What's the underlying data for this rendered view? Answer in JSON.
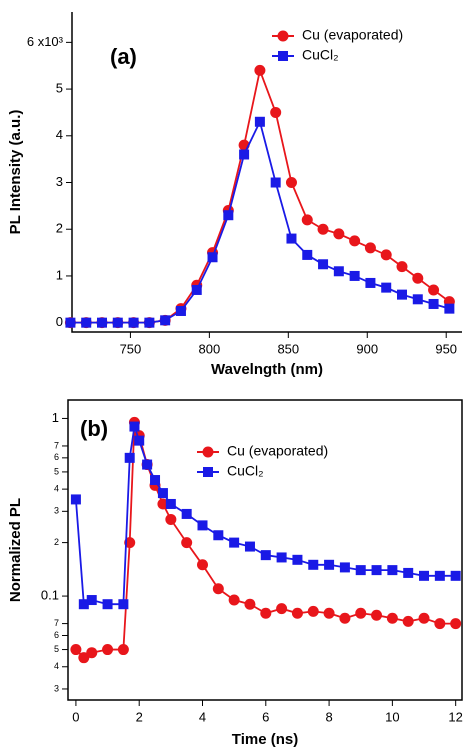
{
  "chart_data": [
    {
      "type": "line",
      "annotation": "(a)",
      "x_label": "Wavelngth (nm)",
      "y_label": "PL Intensity (a.u.)",
      "x": [
        712,
        722,
        732,
        742,
        752,
        762,
        772,
        782,
        792,
        802,
        812,
        822,
        832,
        842,
        852,
        862,
        872,
        882,
        892,
        902,
        912,
        922,
        932,
        942,
        952
      ],
      "series": [
        {
          "name": "Cu (evaporated)",
          "color": "#e8161b",
          "marker": "circle",
          "values": [
            0,
            0,
            0,
            0,
            0,
            0,
            0.05,
            0.3,
            0.8,
            1.5,
            2.4,
            3.8,
            5.4,
            4.5,
            3.0,
            2.2,
            2.0,
            1.9,
            1.75,
            1.6,
            1.45,
            1.2,
            0.95,
            0.7,
            0.45
          ]
        },
        {
          "name": "CuCl₂",
          "color": "#1a1ae6",
          "marker": "square",
          "values": [
            0,
            0,
            0,
            0,
            0,
            0,
            0.05,
            0.25,
            0.7,
            1.4,
            2.3,
            3.6,
            4.3,
            3.0,
            1.8,
            1.45,
            1.25,
            1.1,
            1.0,
            0.85,
            0.75,
            0.6,
            0.5,
            0.4,
            0.3
          ]
        }
      ],
      "xlim": [
        713,
        960
      ],
      "xticks": [
        750,
        800,
        850,
        900,
        950
      ],
      "ylim": [
        -0.2,
        6.65
      ],
      "yticks": [
        0,
        1,
        2,
        3,
        4,
        5,
        {
          "value": 6,
          "label": "6 x10³"
        }
      ]
    },
    {
      "type": "line",
      "annotation": "(b)",
      "x_label": "Time (ns)",
      "y_label": "Normalized PL",
      "log_y": true,
      "x": [
        0,
        0.25,
        0.5,
        1,
        1.5,
        1.7,
        1.85,
        2,
        2.25,
        2.5,
        2.75,
        3,
        3.5,
        4,
        4.5,
        5,
        5.5,
        6,
        6.5,
        7,
        7.5,
        8,
        8.5,
        9,
        9.5,
        10,
        10.5,
        11,
        11.5,
        12
      ],
      "series": [
        {
          "name": "Cu (evaporated)",
          "color": "#e8161b",
          "marker": "circle",
          "values": [
            0.05,
            0.045,
            0.048,
            0.05,
            0.05,
            0.2,
            0.95,
            0.8,
            0.55,
            0.42,
            0.33,
            0.27,
            0.2,
            0.15,
            0.11,
            0.095,
            0.09,
            0.08,
            0.085,
            0.08,
            0.082,
            0.08,
            0.075,
            0.08,
            0.078,
            0.075,
            0.072,
            0.075,
            0.07,
            0.07
          ]
        },
        {
          "name": "CuCl₂",
          "color": "#1a1ae6",
          "marker": "square",
          "values": [
            0.35,
            0.09,
            0.095,
            0.09,
            0.09,
            0.6,
            0.9,
            0.75,
            0.55,
            0.45,
            0.38,
            0.33,
            0.29,
            0.25,
            0.22,
            0.2,
            0.19,
            0.17,
            0.165,
            0.16,
            0.15,
            0.15,
            0.145,
            0.14,
            0.14,
            0.14,
            0.135,
            0.13,
            0.13,
            0.13
          ]
        }
      ],
      "xlim": [
        -0.25,
        12.2
      ],
      "xticks": [
        0,
        2,
        4,
        6,
        8,
        10,
        12
      ],
      "ylim": [
        0.026,
        1.27
      ],
      "yticks": [
        1,
        {
          "value": 0.7,
          "label": "7"
        },
        {
          "value": 0.6,
          "label": "6"
        },
        {
          "value": 0.5,
          "label": "5"
        },
        {
          "value": 0.4,
          "label": "4"
        },
        {
          "value": 0.3,
          "label": "3"
        },
        {
          "value": 0.2,
          "label": "2"
        },
        0.1,
        {
          "value": 0.07,
          "label": "7"
        },
        {
          "value": 0.06,
          "label": "6"
        },
        {
          "value": 0.05,
          "label": "5"
        },
        {
          "value": 0.04,
          "label": "4"
        },
        {
          "value": 0.03,
          "label": "3"
        }
      ]
    }
  ]
}
